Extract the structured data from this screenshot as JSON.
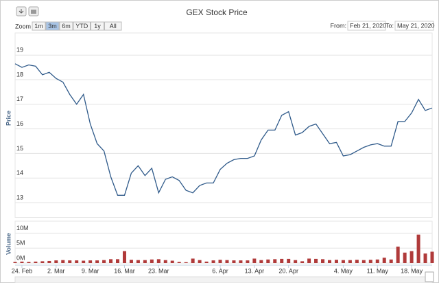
{
  "title": "GEX Stock Price",
  "toolbar": {
    "zoom_label": "Zoom",
    "range_buttons": [
      "1m",
      "3m",
      "6m",
      "YTD",
      "1y",
      "All"
    ],
    "selected_range": "3m",
    "from_label": "From:",
    "from_date": "Feb 21, 2020",
    "to_label": "To:",
    "to_date": "May 21, 2020"
  },
  "chart_data": [
    {
      "type": "line",
      "y_label": "Price",
      "color": "#2f5a8a",
      "ylim": [
        12.4,
        19.9
      ],
      "yticks": [
        13,
        14,
        15,
        16,
        17,
        18,
        19
      ],
      "grid": true,
      "values": [
        18.65,
        18.5,
        18.6,
        18.55,
        18.2,
        18.3,
        18.05,
        17.9,
        17.4,
        17.0,
        17.4,
        16.2,
        15.4,
        15.1,
        14.05,
        13.3,
        13.3,
        14.2,
        14.5,
        14.1,
        14.4,
        13.4,
        13.95,
        14.05,
        13.9,
        13.5,
        13.4,
        13.7,
        13.8,
        13.8,
        14.35,
        14.6,
        14.75,
        14.8,
        14.8,
        14.9,
        15.55,
        15.95,
        15.95,
        16.55,
        16.7,
        15.75,
        15.85,
        16.1,
        16.2,
        15.8,
        15.4,
        15.45,
        14.9,
        14.95,
        15.1,
        15.25,
        15.35,
        15.4,
        15.3,
        15.3,
        16.3,
        16.3,
        16.65,
        17.2,
        16.75,
        16.85
      ]
    },
    {
      "type": "bar",
      "y_label": "Volume",
      "color": "#b03a3a",
      "ylim": [
        0,
        14000000
      ],
      "yticks": [
        {
          "value": 0,
          "label": "0M"
        },
        {
          "value": 5000000,
          "label": "5M"
        },
        {
          "value": 10000000,
          "label": "10M"
        }
      ],
      "grid": true,
      "categories": [
        null,
        "24. Feb",
        null,
        null,
        null,
        null,
        "2. Mar",
        null,
        null,
        null,
        null,
        "9. Mar",
        null,
        null,
        null,
        null,
        "16. Mar",
        null,
        null,
        null,
        null,
        "23. Mar",
        null,
        null,
        null,
        null,
        null,
        null,
        null,
        null,
        "6. Apr",
        null,
        null,
        null,
        null,
        "13. Apr",
        null,
        null,
        null,
        null,
        "20. Apr",
        null,
        null,
        null,
        null,
        null,
        null,
        null,
        "4. May",
        null,
        null,
        null,
        null,
        "11. May",
        null,
        null,
        null,
        null,
        "18. May",
        null,
        null,
        null
      ],
      "values": [
        400000,
        500000,
        400000,
        500000,
        600000,
        700000,
        900000,
        1000000,
        900000,
        900000,
        800000,
        900000,
        900000,
        1000000,
        1300000,
        1300000,
        4000000,
        1100000,
        1000000,
        1000000,
        1200000,
        1300000,
        1000000,
        800000,
        400000,
        300000,
        1500000,
        1000000,
        500000,
        900000,
        1100000,
        1000000,
        900000,
        900000,
        900000,
        1500000,
        1000000,
        1200000,
        1300000,
        1400000,
        1400000,
        1000000,
        600000,
        1500000,
        1400000,
        1300000,
        1000000,
        1100000,
        1000000,
        1000000,
        1100000,
        1000000,
        1100000,
        1200000,
        1800000,
        1200000,
        5500000,
        3500000,
        4000000,
        9500000,
        3200000,
        3800000
      ]
    }
  ]
}
